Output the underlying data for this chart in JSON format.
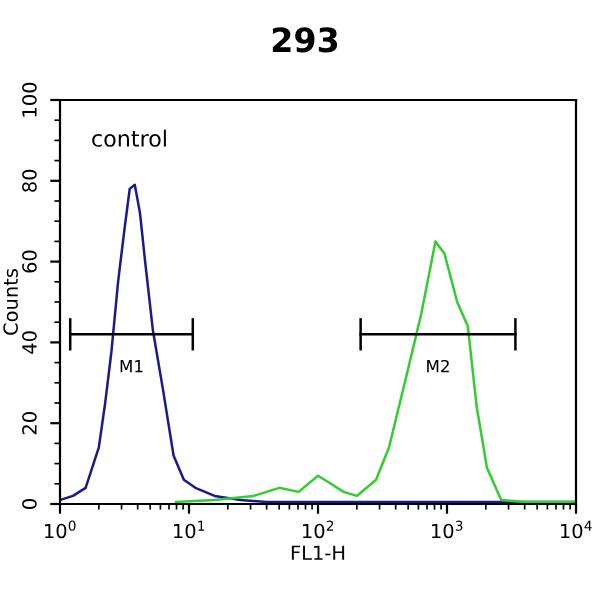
{
  "chart_data": {
    "type": "line",
    "title": "293",
    "xlabel": "FL1-H",
    "ylabel": "Counts",
    "log": "x",
    "xlim": [
      1,
      10000
    ],
    "xticks": [
      {
        "value": 1,
        "label": "10$^{0}$"
      },
      {
        "value": 10,
        "label": "10$^{1}$"
      },
      {
        "value": 100,
        "label": "10$^{2}$"
      },
      {
        "value": 1000,
        "label": "10$^{3}$"
      },
      {
        "value": 10000,
        "label": "10$^{4}$"
      }
    ],
    "ylim": [
      0,
      100
    ],
    "yticks": [
      0,
      20,
      40,
      60,
      80,
      100
    ],
    "grid": false,
    "marker": "none",
    "line_style": "solid",
    "series": [
      {
        "color": "#1a1a8c",
        "x": [
          1,
          1.26,
          1.58,
          2.0,
          2.24,
          2.51,
          2.82,
          3.16,
          3.47,
          3.8,
          4.17,
          4.57,
          5.25,
          6.31,
          7.59,
          9.12,
          11.2,
          15.8,
          25.1,
          39.8,
          100,
          1000,
          10000
        ],
        "values": [
          1,
          2,
          4,
          14,
          25,
          38,
          55,
          68,
          78,
          79,
          72,
          60,
          43,
          28,
          12,
          6,
          4,
          2,
          1,
          0.5,
          0.5,
          0.5,
          0.5
        ]
      },
      {
        "color": "#33cc33",
        "x": [
          7.94,
          15.8,
          31.6,
          50.1,
          70.8,
          100,
          126,
          158,
          200,
          282,
          355,
          479,
          631,
          759,
          813,
          955,
          1200,
          1450,
          1700,
          2040,
          2630,
          3980,
          10000
        ],
        "values": [
          0.5,
          1,
          2,
          4,
          3,
          7,
          5,
          3,
          2,
          6,
          14,
          31,
          47,
          60,
          65,
          62,
          50,
          44,
          24,
          9,
          1,
          0.5,
          0.5
        ]
      },
      {
        "type": "line",
        "color": "#000000",
        "x": [
          1.2,
          10.7
        ],
        "values": [
          42,
          42
        ],
        "errors": [
          4,
          4
        ]
      },
      {
        "type": "line",
        "color": "#000000",
        "x": [
          214,
          3390
        ],
        "values": [
          42,
          42
        ],
        "errors": [
          4,
          4
        ]
      }
    ],
    "annotations": [
      "control",
      "M1",
      "M2"
    ]
  }
}
